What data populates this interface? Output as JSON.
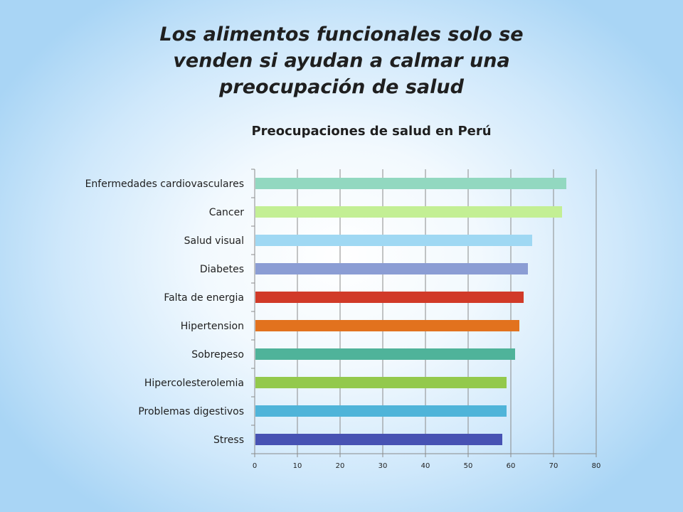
{
  "slide": {
    "title_lines": [
      "Los alimentos funcionales solo se",
      "venden si ayudan a calmar una",
      "preocupación de salud"
    ]
  },
  "chart_data": {
    "type": "bar",
    "orientation": "horizontal",
    "title": "Preocupaciones de salud en Perú",
    "categories": [
      "Enfermedades cardiovasculares",
      "Cancer",
      "Salud visual",
      "Diabetes",
      "Falta de energia",
      "Hipertension",
      "Sobrepeso",
      "Hipercolesterolemia",
      "Problemas digestivos",
      "Stress"
    ],
    "values": [
      73,
      72,
      65,
      64,
      63,
      62,
      61,
      59,
      59,
      58
    ],
    "colors": [
      "#92d8c0",
      "#c3ef94",
      "#9fd8f3",
      "#8b9dd4",
      "#d13a28",
      "#e2721e",
      "#4fb39a",
      "#93c94c",
      "#4fb4d9",
      "#4752b3"
    ],
    "xlim": [
      0,
      80
    ],
    "xticks": [
      0,
      10,
      20,
      30,
      40,
      50,
      60,
      70,
      80
    ],
    "grid": true,
    "xlabel": "",
    "ylabel": ""
  }
}
